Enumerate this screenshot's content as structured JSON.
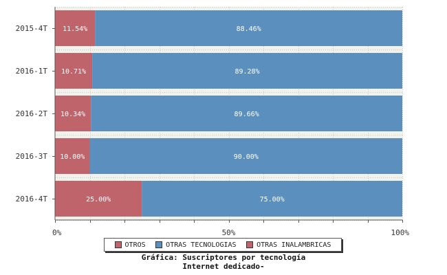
{
  "chart_data": {
    "type": "bar",
    "orientation": "horizontal",
    "stacked": true,
    "categories": [
      "2015-4T",
      "2016-1T",
      "2016-2T",
      "2016-3T",
      "2016-4T"
    ],
    "series": [
      {
        "name": "OTRAS INALAMBRICAS",
        "color": "#c0646b",
        "values": [
          11.54,
          10.71,
          10.34,
          10.0,
          25.0
        ],
        "labels": [
          "11.54%",
          "10.71%",
          "10.34%",
          "10.00%",
          "25.00%"
        ]
      },
      {
        "name": "OTRAS TECNOLOGIAS",
        "color": "#5b8fbe",
        "values": [
          88.46,
          89.28,
          89.66,
          90.0,
          75.0
        ],
        "labels": [
          "88.46%",
          "89.28%",
          "89.66%",
          "90.00%",
          "75.00%"
        ]
      }
    ],
    "xlim": [
      0,
      100
    ],
    "x_ticks": [
      "0%",
      "50%",
      "100%"
    ],
    "grid": true
  },
  "legend": [
    {
      "label": "OTROS",
      "color": "#c0646b"
    },
    {
      "label": "OTRAS TECNOLOGIAS",
      "color": "#5b8fbe"
    },
    {
      "label": "OTRAS INALAMBRICAS",
      "color": "#c0646b"
    }
  ],
  "caption": {
    "line1": "Gráfica: Suscriptores por tecnología",
    "line2": "Internet dedicado-"
  }
}
